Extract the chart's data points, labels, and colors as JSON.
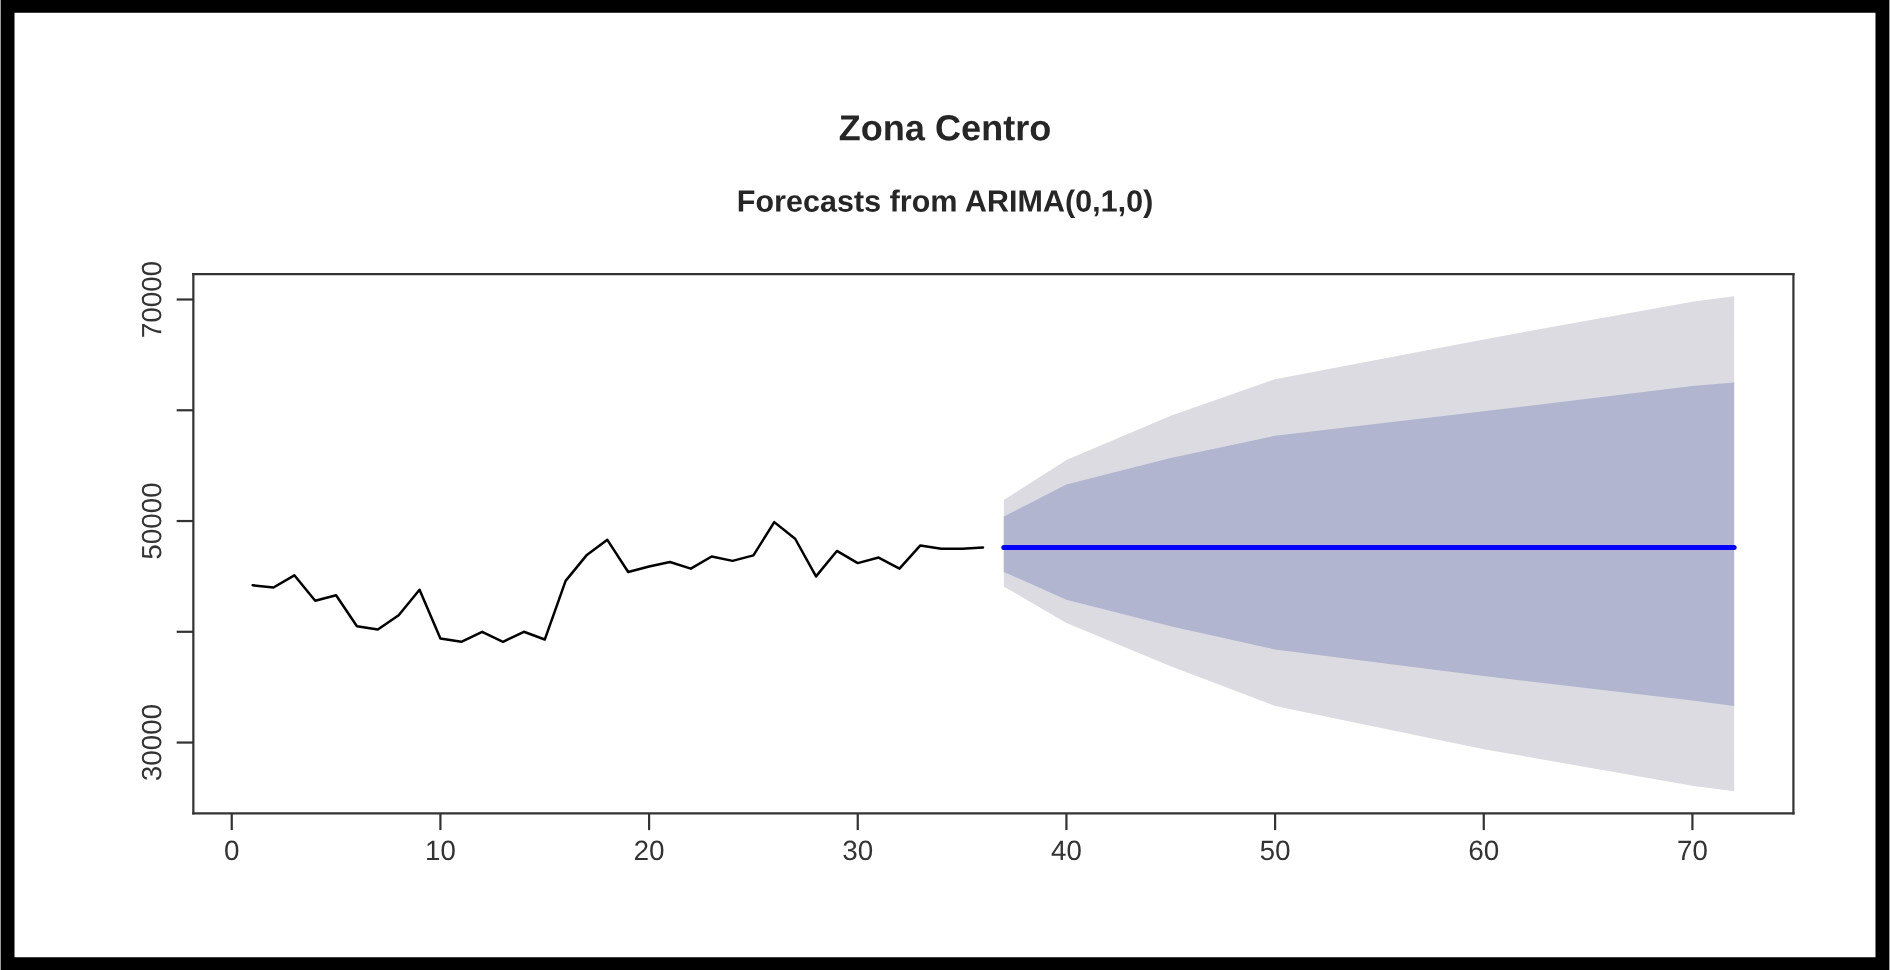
{
  "chart_data": {
    "type": "line",
    "title": "Zona Centro",
    "subtitle": "Forecasts from ARIMA(0,1,0)",
    "xlim": [
      -1.84,
      74.84
    ],
    "xticks": [
      0,
      10,
      20,
      30,
      40,
      50,
      60,
      70
    ],
    "ylim": [
      23600,
      72300
    ],
    "yticks": [
      30000,
      {
        "value": 40000,
        "label": null
      },
      50000,
      {
        "value": 60000,
        "label": null
      },
      70000
    ],
    "grid": false,
    "legend": false,
    "series": [
      {
        "color": "#000000",
        "x": [
          1,
          2,
          3,
          4,
          5,
          6,
          7,
          8,
          9,
          10,
          11,
          12,
          13,
          14,
          15,
          16,
          17,
          18,
          19,
          20,
          21,
          22,
          23,
          24,
          25,
          26,
          27,
          28,
          29,
          30,
          31,
          32,
          33,
          34,
          35,
          36
        ],
        "values": [
          44200,
          44000,
          45100,
          42800,
          43300,
          40500,
          40200,
          41500,
          43800,
          39400,
          39100,
          40000,
          39100,
          40000,
          39300,
          44600,
          46900,
          48300,
          45400,
          45900,
          46300,
          45700,
          46800,
          46400,
          46900,
          49900,
          48400,
          45000,
          47300,
          46200,
          46700,
          45700,
          47800,
          47500,
          47500,
          47600
        ]
      },
      {
        "color": "#dbdbe1",
        "x": [
          37,
          40,
          45,
          50,
          60,
          70,
          72
        ],
        "values": [
          null,
          null,
          null,
          null,
          null,
          null,
          null
        ],
        "lower": [
          44100,
          40800,
          36900,
          33300,
          29400,
          26100,
          25600
        ],
        "upper": [
          51900,
          55500,
          59500,
          62800,
          66400,
          69800,
          70300
        ]
      },
      {
        "color": "#b1b5cf",
        "x": [
          37,
          40,
          45,
          50,
          60,
          70,
          72
        ],
        "values": [
          null,
          null,
          null,
          null,
          null,
          null,
          null
        ],
        "lower": [
          45400,
          42900,
          40500,
          38400,
          36000,
          33800,
          33300
        ],
        "upper": [
          50400,
          53300,
          55700,
          57700,
          59900,
          62200,
          62500
        ]
      },
      {
        "color": "#0000ff",
        "x": [
          37,
          40,
          45,
          50,
          60,
          70,
          72
        ],
        "values": [
          47600,
          47600,
          47600,
          47600,
          47600,
          47600,
          47600
        ]
      }
    ]
  }
}
